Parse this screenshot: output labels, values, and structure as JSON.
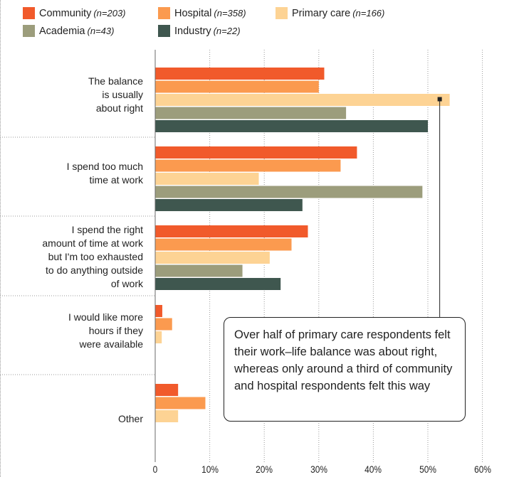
{
  "chart_data": {
    "type": "bar",
    "orientation": "horizontal",
    "categories": [
      "The balance\nis usually\nabout right",
      "I spend too much\ntime at work",
      "I spend the right\namount of time at work\nbut I'm too exhausted\nto do anything outside\nof work",
      "I would like more\nhours if they\nwere available",
      "Other"
    ],
    "series": [
      {
        "name": "Community",
        "n_label": "(n=203)",
        "color": "#f15a2b",
        "values": [
          31,
          37,
          28,
          1.3,
          4.2
        ]
      },
      {
        "name": "Hospital",
        "n_label": "(n=358)",
        "color": "#fb9a4f",
        "values": [
          30,
          34,
          25,
          3.1,
          9.2
        ]
      },
      {
        "name": "Primary care",
        "n_label": "(n=166)",
        "color": "#fdd394",
        "values": [
          54,
          19,
          21,
          1.2,
          4.2
        ]
      },
      {
        "name": "Academia",
        "n_label": "(n=43)",
        "color": "#9c9d7c",
        "values": [
          35,
          49,
          16,
          0,
          0
        ]
      },
      {
        "name": "Industry",
        "n_label": "(n=22)",
        "color": "#3f574f",
        "values": [
          50,
          27,
          23,
          0,
          0
        ]
      }
    ],
    "x_ticks": [
      "0",
      "10%",
      "20%",
      "30%",
      "40%",
      "50%",
      "60%"
    ],
    "xlim": [
      0,
      60
    ],
    "grid": "vertical dotted",
    "legend_position": "top",
    "annotation": "Over half of primary care respondents felt their work–life balance was about right, whereas only around a third of community and hospital respondents felt this way"
  }
}
